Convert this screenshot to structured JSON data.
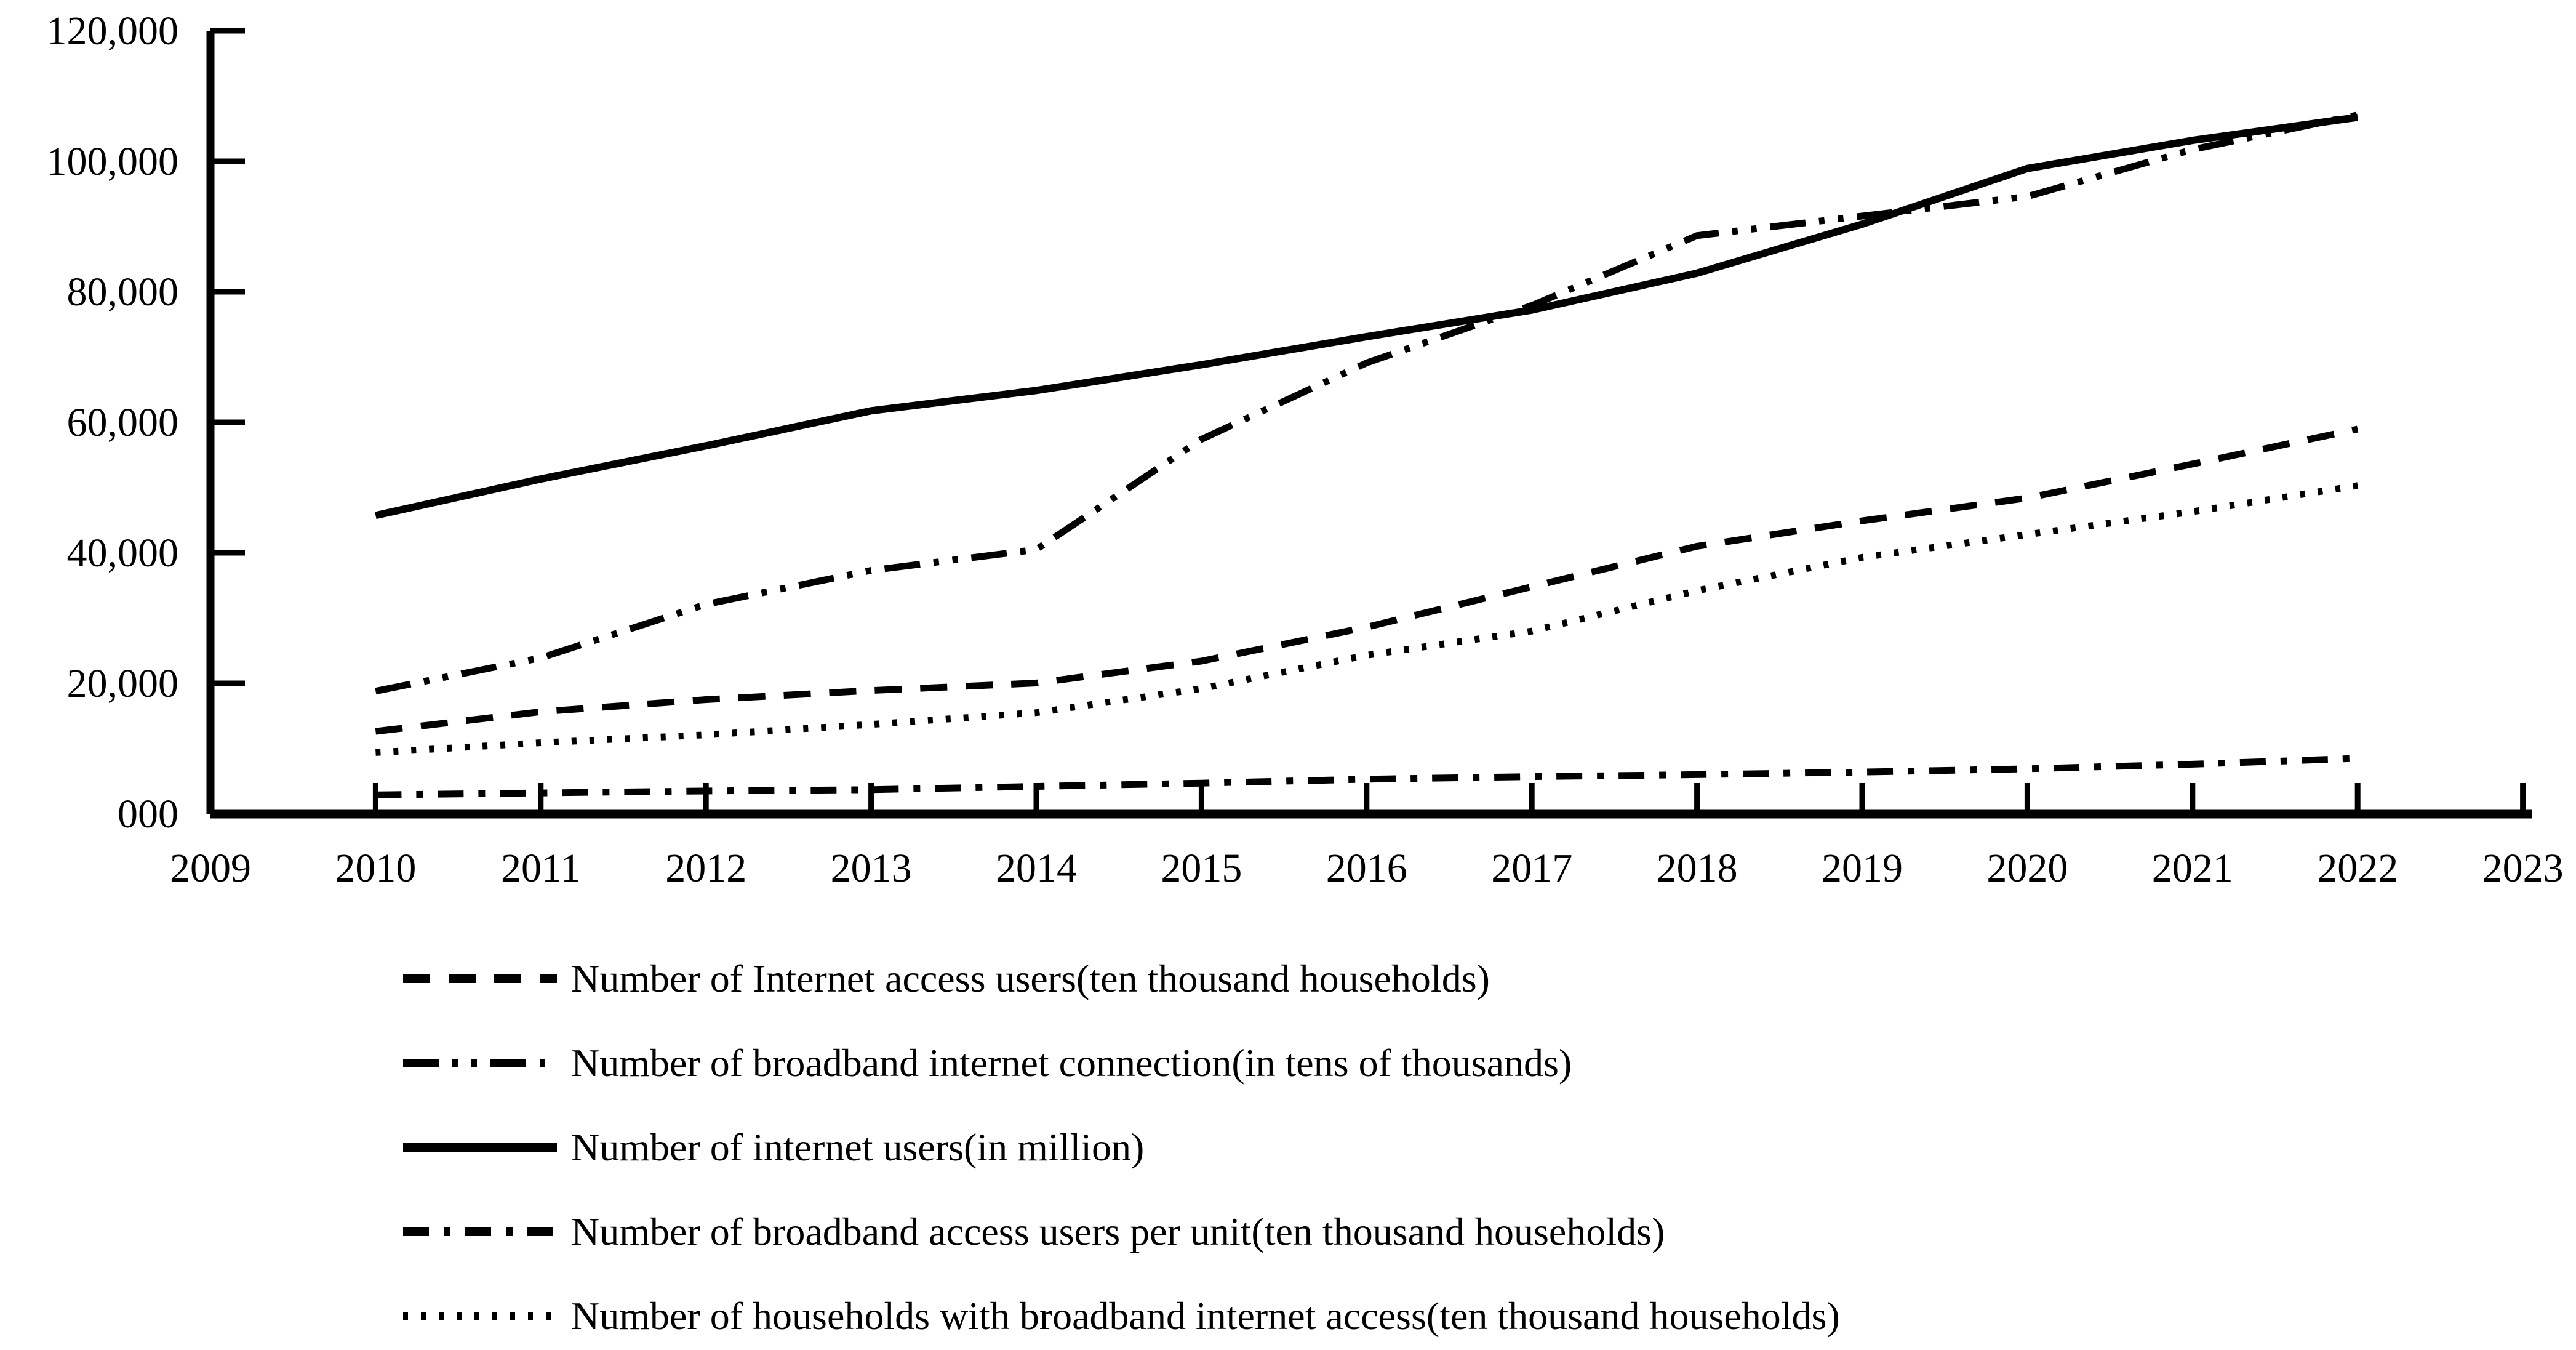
{
  "chart_data": {
    "type": "line",
    "title": "",
    "xlabel": "",
    "ylabel": "",
    "x": [
      2010,
      2011,
      2012,
      2013,
      2014,
      2015,
      2016,
      2017,
      2018,
      2019,
      2020,
      2021,
      2022
    ],
    "x_axis_ticks": [
      2009,
      2010,
      2011,
      2012,
      2013,
      2014,
      2015,
      2016,
      2017,
      2018,
      2019,
      2020,
      2021,
      2022,
      2023
    ],
    "xlim": [
      2009,
      2023
    ],
    "ylim": [
      0,
      120000
    ],
    "ytick_step": 20000,
    "ytick_labels": [
      "000",
      "20,000",
      "40,000",
      "60,000",
      "80,000",
      "100,000",
      "120,000"
    ],
    "grid": false,
    "legend_position": "bottom-left",
    "colors": {
      "line": "#000000",
      "background": "#ffffff"
    },
    "series": [
      {
        "name": "Number of Internet access users(ten thousand households)",
        "line_style": "dashed",
        "values": [
          12635,
          15645,
          17500,
          18900,
          20050,
          23400,
          28600,
          34800,
          41000,
          44900,
          48400,
          53600,
          58965
        ]
      },
      {
        "name": "Number of broadband internet connection(in tens of thousands)",
        "line_style": "dash-dot-dot",
        "values": [
          18800,
          23900,
          32100,
          37300,
          40500,
          57400,
          69100,
          77900,
          88600,
          91600,
          94600,
          101800,
          107100
        ]
      },
      {
        "name": "Number of internet users(in million)",
        "line_style": "solid",
        "values": [
          45730,
          51310,
          56400,
          61760,
          64875,
          68825,
          73125,
          77200,
          82850,
          90360,
          98900,
          103200,
          106745
        ]
      },
      {
        "name": "Number of broadband access users per unit(ten thousand households)",
        "line_style": "dash-dot",
        "values": [
          2900,
          3200,
          3500,
          3700,
          4200,
          4700,
          5300,
          5700,
          6000,
          6400,
          6900,
          7600,
          8500
        ]
      },
      {
        "name": "Number of households with broadband internet access(ten thousand households)",
        "line_style": "dotted",
        "values": [
          9400,
          10900,
          12100,
          13700,
          15500,
          19200,
          24300,
          28000,
          34200,
          39300,
          42800,
          46300,
          50300
        ]
      }
    ]
  }
}
